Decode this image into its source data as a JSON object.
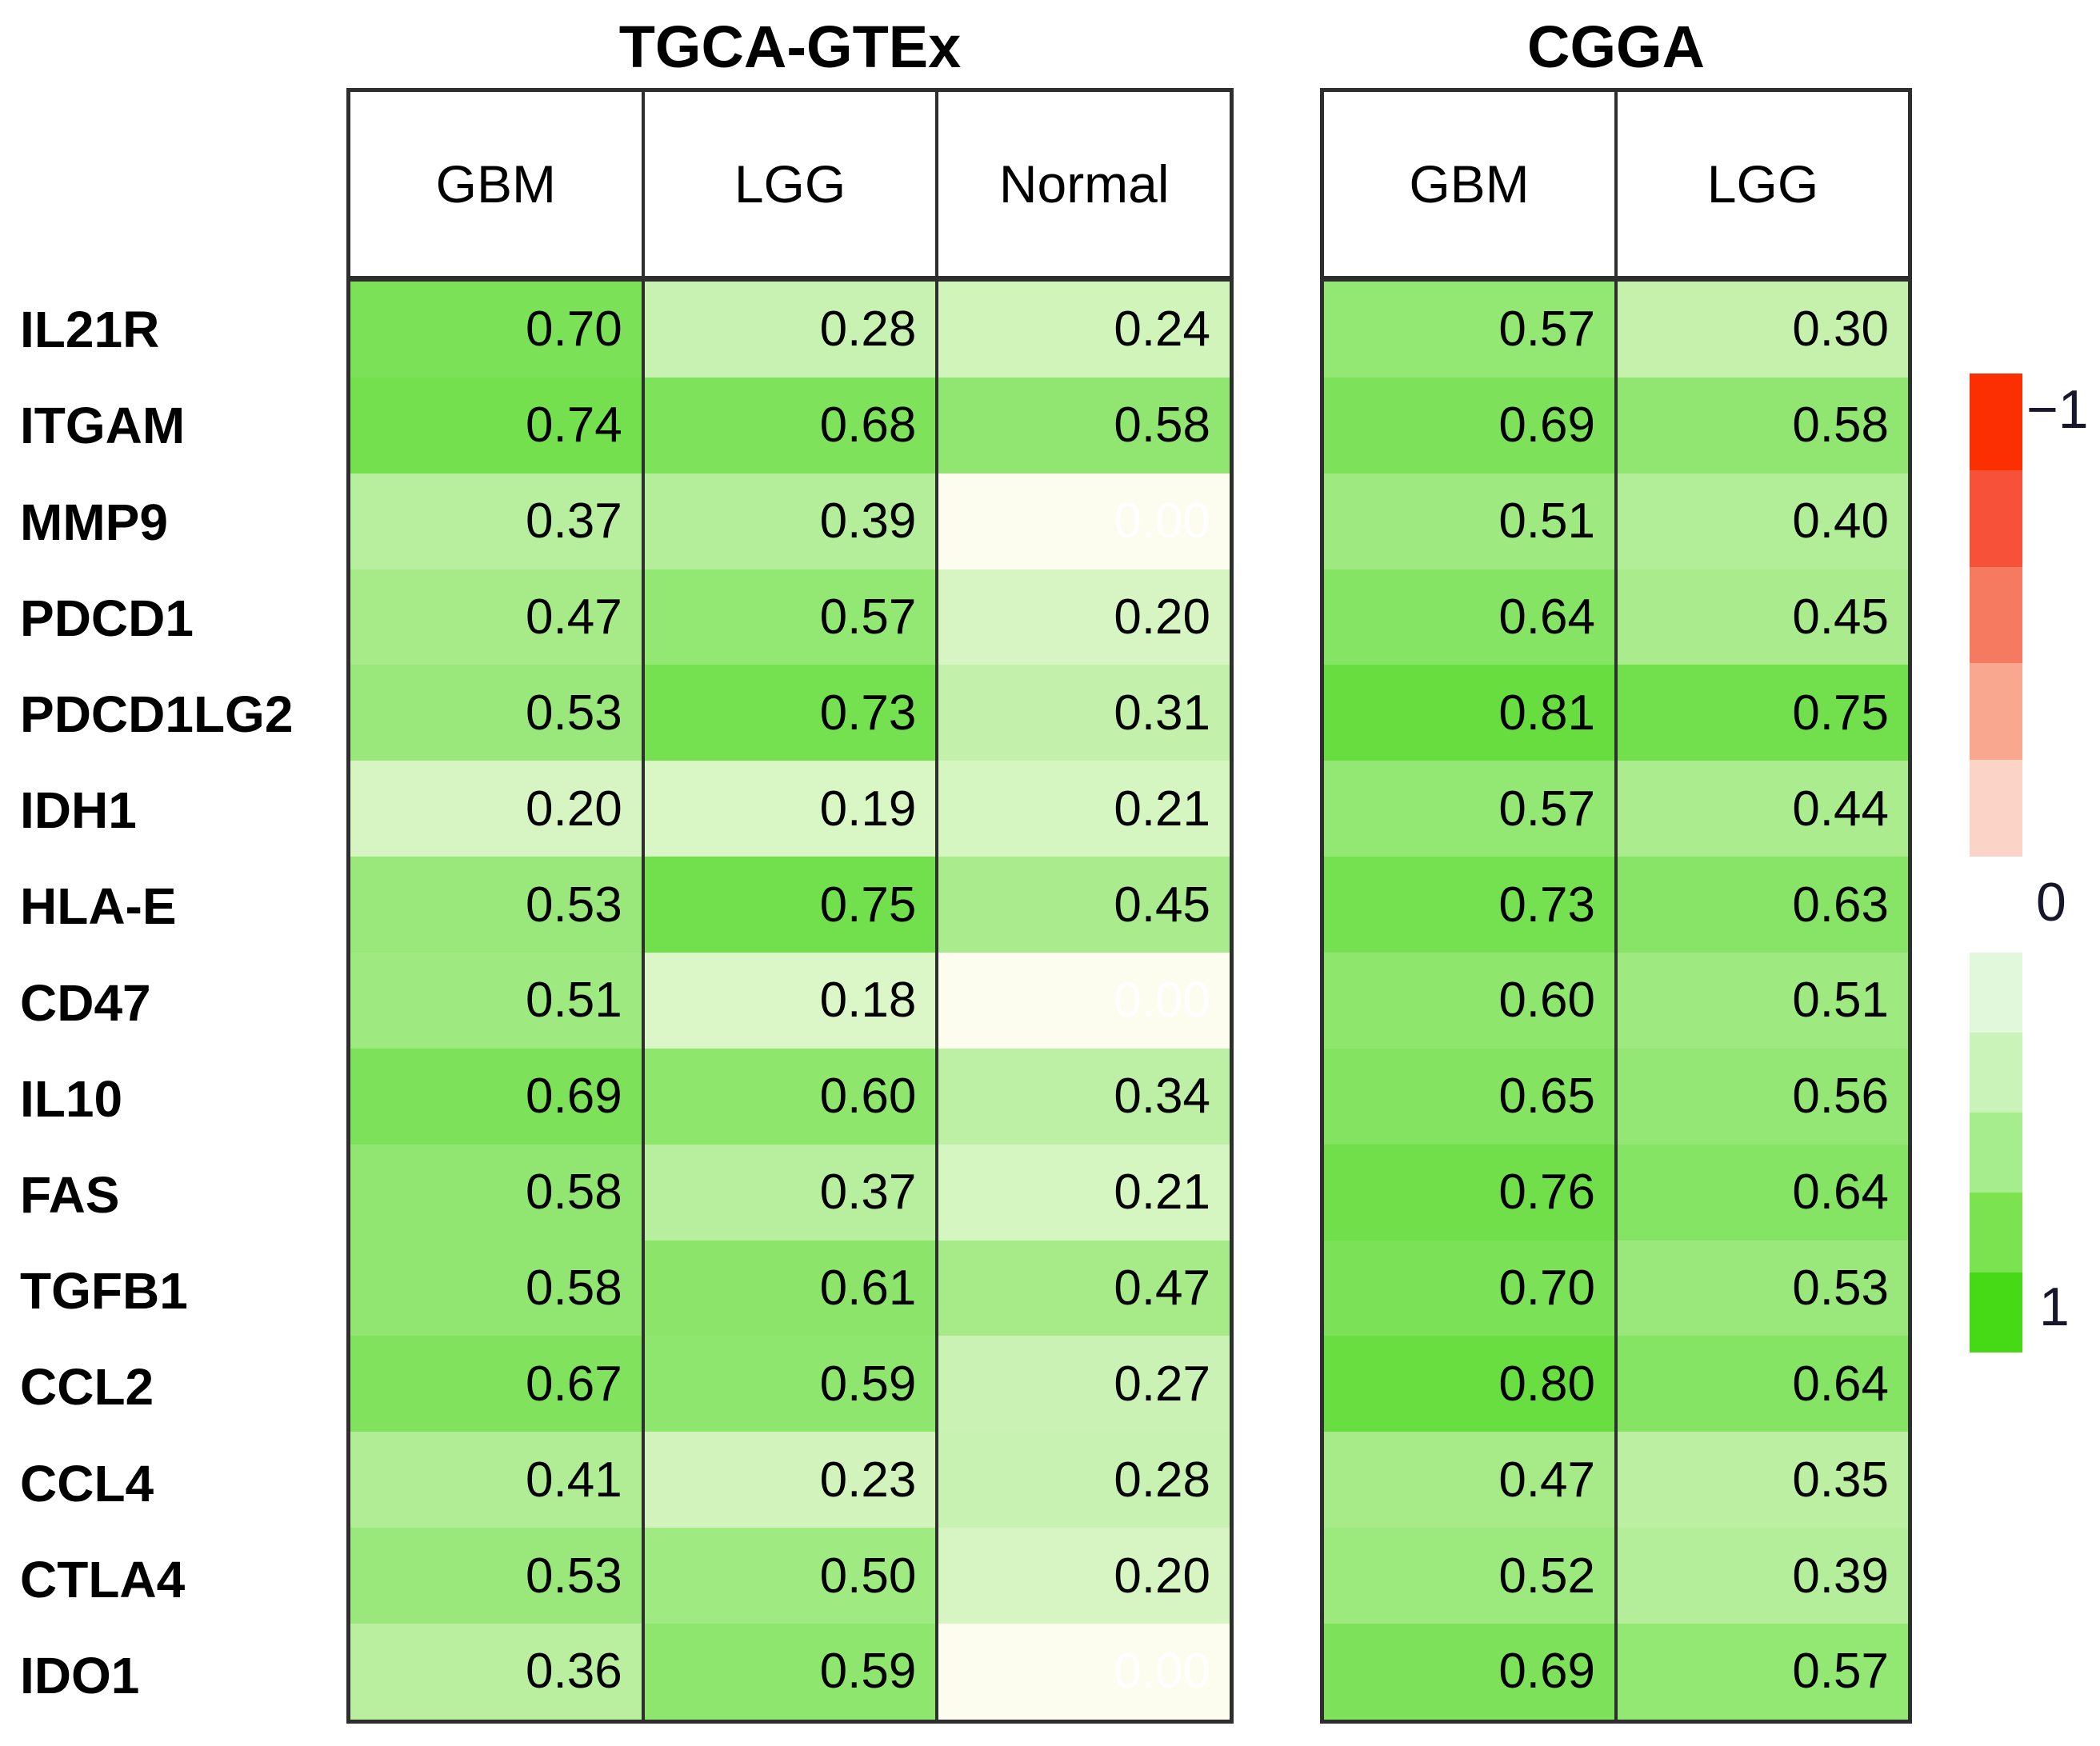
{
  "tables": [
    {
      "id": "tgca",
      "title": "TGCA-GTEx",
      "group_key": "TGCA-GTEx",
      "columns": [
        "GBM",
        "LGG",
        "Normal"
      ]
    },
    {
      "id": "cgga",
      "title": "CGGA",
      "group_key": "CGGA",
      "columns": [
        "GBM",
        "LGG"
      ]
    }
  ],
  "legend": {
    "tick_top": "−1",
    "tick_mid": "0",
    "tick_bottom": "1",
    "red_blocks": [
      "#FB2F01",
      "#F75139",
      "#F67A5F",
      "#F9A78F",
      "#FCD3C7"
    ],
    "green_blocks": [
      "#E2F8DA",
      "#C9F3B8",
      "#A6EE8D",
      "#7BE350",
      "#46DA16"
    ]
  },
  "colors": {
    "cell_zero": "#FCFDEE",
    "cell_one": "#44D616",
    "border": "#2E2E2E",
    "value_text": "#000000",
    "zero_value_text": "#FFFFFF"
  },
  "chart_data": {
    "type": "heatmap",
    "row_labels": [
      "IL21R",
      "ITGAM",
      "MMP9",
      "PDCD1",
      "PDCD1LG2",
      "IDH1",
      "HLA-E",
      "CD47",
      "IL10",
      "FAS",
      "TGFB1",
      "CCL2",
      "CCL4",
      "CTLA4",
      "IDO1"
    ],
    "column_groups": [
      {
        "name": "TGCA-GTEx",
        "columns": [
          "GBM",
          "LGG",
          "Normal"
        ]
      },
      {
        "name": "CGGA",
        "columns": [
          "GBM",
          "LGG"
        ]
      }
    ],
    "values": {
      "TGCA-GTEx": [
        [
          0.7,
          0.28,
          0.24
        ],
        [
          0.74,
          0.68,
          0.58
        ],
        [
          0.37,
          0.39,
          0.0
        ],
        [
          0.47,
          0.57,
          0.2
        ],
        [
          0.53,
          0.73,
          0.31
        ],
        [
          0.2,
          0.19,
          0.21
        ],
        [
          0.53,
          0.75,
          0.45
        ],
        [
          0.51,
          0.18,
          0.0
        ],
        [
          0.69,
          0.6,
          0.34
        ],
        [
          0.58,
          0.37,
          0.21
        ],
        [
          0.58,
          0.61,
          0.47
        ],
        [
          0.67,
          0.59,
          0.27
        ],
        [
          0.41,
          0.23,
          0.28
        ],
        [
          0.53,
          0.5,
          0.2
        ],
        [
          0.36,
          0.59,
          0.0
        ]
      ],
      "CGGA": [
        [
          0.57,
          0.3
        ],
        [
          0.69,
          0.58
        ],
        [
          0.51,
          0.4
        ],
        [
          0.64,
          0.45
        ],
        [
          0.81,
          0.75
        ],
        [
          0.57,
          0.44
        ],
        [
          0.73,
          0.63
        ],
        [
          0.6,
          0.51
        ],
        [
          0.65,
          0.56
        ],
        [
          0.76,
          0.64
        ],
        [
          0.7,
          0.53
        ],
        [
          0.8,
          0.64
        ],
        [
          0.47,
          0.35
        ],
        [
          0.52,
          0.39
        ],
        [
          0.69,
          0.57
        ]
      ]
    },
    "colorscale": {
      "min": -1,
      "mid": 0,
      "max": 1,
      "min_color": "red",
      "mid_color": "white",
      "max_color": "green"
    },
    "legend_ticks": [
      "−1",
      "0",
      "1"
    ],
    "value_format": "2 decimals",
    "grid": "vertical column borders only"
  }
}
